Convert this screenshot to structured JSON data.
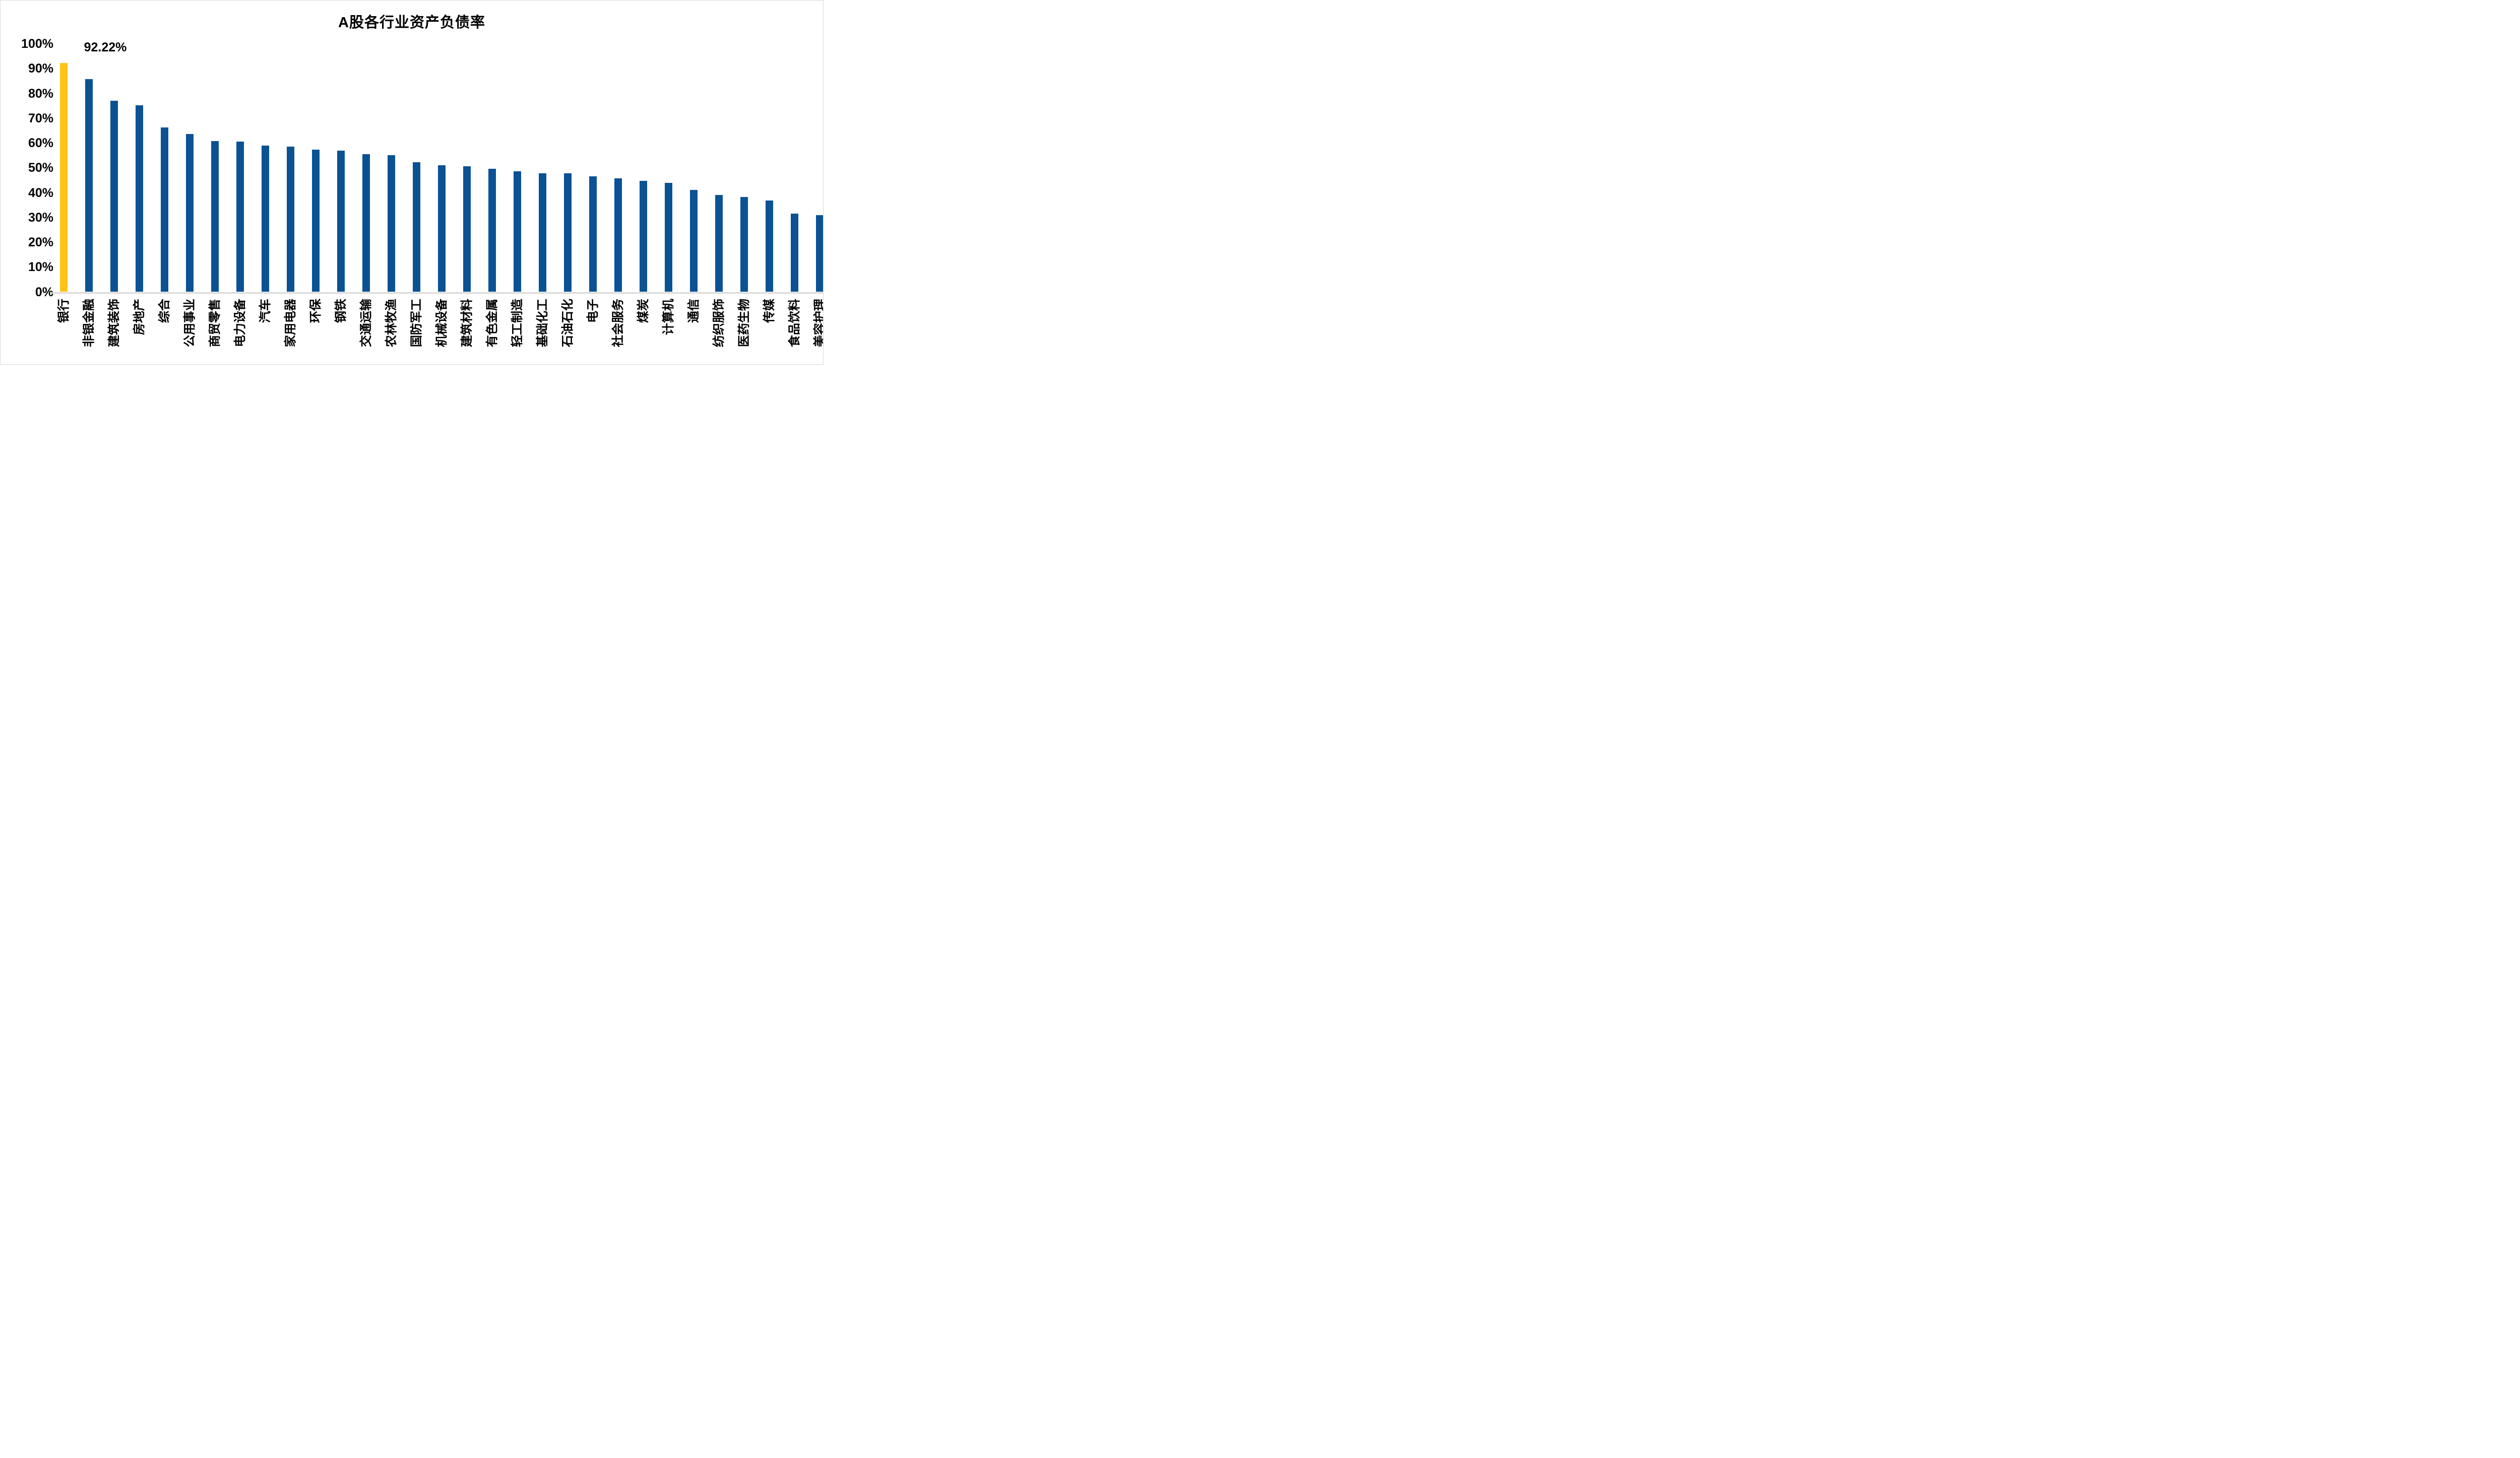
{
  "title": "A股各行业资产负债率",
  "data_label": {
    "text": "92.22%"
  },
  "colors": {
    "bar_default": "#0a5294",
    "bar_highlight": "#fdc316",
    "axis_line": "#d9d9d9",
    "text": "#000000",
    "background": "#ffffff"
  },
  "y_axis": {
    "tick_labels": [
      "0%",
      "10%",
      "20%",
      "30%",
      "40%",
      "50%",
      "60%",
      "70%",
      "80%",
      "90%",
      "100%"
    ]
  },
  "chart_data": {
    "type": "bar",
    "title": "A股各行业资产负债率",
    "xlabel": "",
    "ylabel": "",
    "ylim": [
      0,
      100
    ],
    "y_tick_step": 10,
    "grid": false,
    "legend": "none",
    "highlight_index": 0,
    "annotations": [
      {
        "category": "银行",
        "text": "92.22%"
      }
    ],
    "categories": [
      "银行",
      "非银金融",
      "建筑装饰",
      "房地产",
      "综合",
      "公用事业",
      "商贸零售",
      "电力设备",
      "汽车",
      "家用电器",
      "环保",
      "钢铁",
      "交通运输",
      "农林牧渔",
      "国防军工",
      "机械设备",
      "建筑材料",
      "有色金属",
      "轻工制造",
      "基础化工",
      "石油石化",
      "电子",
      "社会服务",
      "煤炭",
      "计算机",
      "通信",
      "纺织服饰",
      "医药生物",
      "传媒",
      "食品饮料",
      "美容护理"
    ],
    "values": [
      92.22,
      85.8,
      77.0,
      75.3,
      66.2,
      63.6,
      60.9,
      60.7,
      59.0,
      58.6,
      57.4,
      56.9,
      55.6,
      55.2,
      52.2,
      51.1,
      50.7,
      49.7,
      48.7,
      47.9,
      47.8,
      46.7,
      45.7,
      44.8,
      43.9,
      41.1,
      39.0,
      38.3,
      36.8,
      31.5,
      31.0
    ]
  }
}
